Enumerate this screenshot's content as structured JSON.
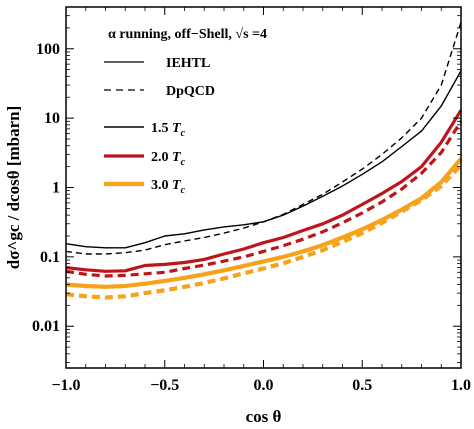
{
  "chart_data": {
    "type": "line",
    "title": "",
    "xlabel": "cos θ",
    "ylabel": "dσ^gc / dcosθ [mbarn]",
    "xlim": [
      -1.0,
      1.0
    ],
    "ylim": [
      0.0025,
      400
    ],
    "y_scale": "log",
    "grid": false,
    "x_ticks": [
      -1.0,
      -0.5,
      0.0,
      0.5,
      1.0
    ],
    "x_tick_labels": [
      "−1.0",
      "−0.5",
      "0.0",
      "0.5",
      "1.0"
    ],
    "y_ticks": [
      0.01,
      0.1,
      1,
      10,
      100
    ],
    "y_tick_labels": [
      "0.01",
      "0.1",
      "1",
      "10",
      "100"
    ],
    "legend": {
      "position": "top-left",
      "heading": "α running, off−Shell, √s =4",
      "style_entries": [
        {
          "label": "IEHTL",
          "dash": "solid"
        },
        {
          "label": "DpQCD",
          "dash": "dashed"
        }
      ],
      "temperature_entries": [
        {
          "value": "1.5",
          "symbol": "T",
          "sub": "c",
          "color": "#000000"
        },
        {
          "value": "2.0",
          "symbol": "T",
          "sub": "c",
          "color": "#c0141b"
        },
        {
          "value": "3.0",
          "symbol": "T",
          "sub": "c",
          "color": "#f7a21b"
        }
      ]
    },
    "x": [
      -1.0,
      -0.9,
      -0.8,
      -0.7,
      -0.6,
      -0.5,
      -0.4,
      -0.3,
      -0.2,
      -0.1,
      0.0,
      0.1,
      0.2,
      0.3,
      0.4,
      0.5,
      0.6,
      0.7,
      0.8,
      0.9,
      1.0
    ],
    "series": [
      {
        "temperature": "1.5 Tc",
        "model": "IEHTL",
        "color": "#000000",
        "dash": "solid",
        "width": 1.4,
        "values": [
          0.155,
          0.14,
          0.135,
          0.135,
          0.16,
          0.2,
          0.215,
          0.245,
          0.27,
          0.29,
          0.32,
          0.4,
          0.54,
          0.75,
          1.05,
          1.55,
          2.35,
          3.9,
          6.5,
          15.0,
          48.0
        ]
      },
      {
        "temperature": "1.5 Tc",
        "model": "DpQCD",
        "color": "#000000",
        "dash": "dashed",
        "width": 1.4,
        "values": [
          0.12,
          0.11,
          0.11,
          0.115,
          0.125,
          0.15,
          0.17,
          0.19,
          0.22,
          0.26,
          0.32,
          0.41,
          0.57,
          0.8,
          1.2,
          1.85,
          3.0,
          5.2,
          10.0,
          30.0,
          240.0
        ]
      },
      {
        "temperature": "2.0 Tc",
        "model": "IEHTL",
        "color": "#c0141b",
        "dash": "solid",
        "width": 3.2,
        "values": [
          0.07,
          0.065,
          0.062,
          0.063,
          0.075,
          0.078,
          0.083,
          0.092,
          0.11,
          0.13,
          0.16,
          0.19,
          0.24,
          0.3,
          0.4,
          0.57,
          0.82,
          1.22,
          2.0,
          4.5,
          13.0
        ]
      },
      {
        "temperature": "2.0 Tc",
        "model": "DpQCD",
        "color": "#c0141b",
        "dash": "dashed",
        "width": 3.2,
        "values": [
          0.062,
          0.056,
          0.053,
          0.054,
          0.057,
          0.06,
          0.068,
          0.076,
          0.087,
          0.1,
          0.12,
          0.145,
          0.18,
          0.23,
          0.31,
          0.43,
          0.62,
          0.95,
          1.6,
          3.2,
          9.0
        ]
      },
      {
        "temperature": "3.0 Tc",
        "model": "IEHTL",
        "color": "#f7a21b",
        "dash": "solid",
        "width": 4.2,
        "values": [
          0.04,
          0.038,
          0.037,
          0.038,
          0.041,
          0.045,
          0.05,
          0.056,
          0.064,
          0.074,
          0.086,
          0.1,
          0.12,
          0.148,
          0.19,
          0.25,
          0.34,
          0.48,
          0.7,
          1.2,
          2.6
        ]
      },
      {
        "temperature": "3.0 Tc",
        "model": "DpQCD",
        "color": "#f7a21b",
        "dash": "dashed",
        "width": 4.2,
        "values": [
          0.029,
          0.027,
          0.026,
          0.027,
          0.03,
          0.033,
          0.037,
          0.042,
          0.049,
          0.058,
          0.068,
          0.081,
          0.1,
          0.125,
          0.165,
          0.22,
          0.31,
          0.45,
          0.66,
          1.05,
          2.1
        ]
      }
    ]
  }
}
